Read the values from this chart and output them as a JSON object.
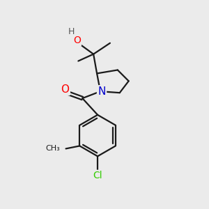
{
  "background_color": "#ebebeb",
  "bond_color": "#1a1a1a",
  "atom_colors": {
    "O": "#ff0000",
    "N": "#0000cc",
    "Cl": "#33cc00",
    "H": "#555555",
    "C": "#1a1a1a"
  },
  "figsize": [
    3.0,
    3.0
  ],
  "dpi": 100
}
